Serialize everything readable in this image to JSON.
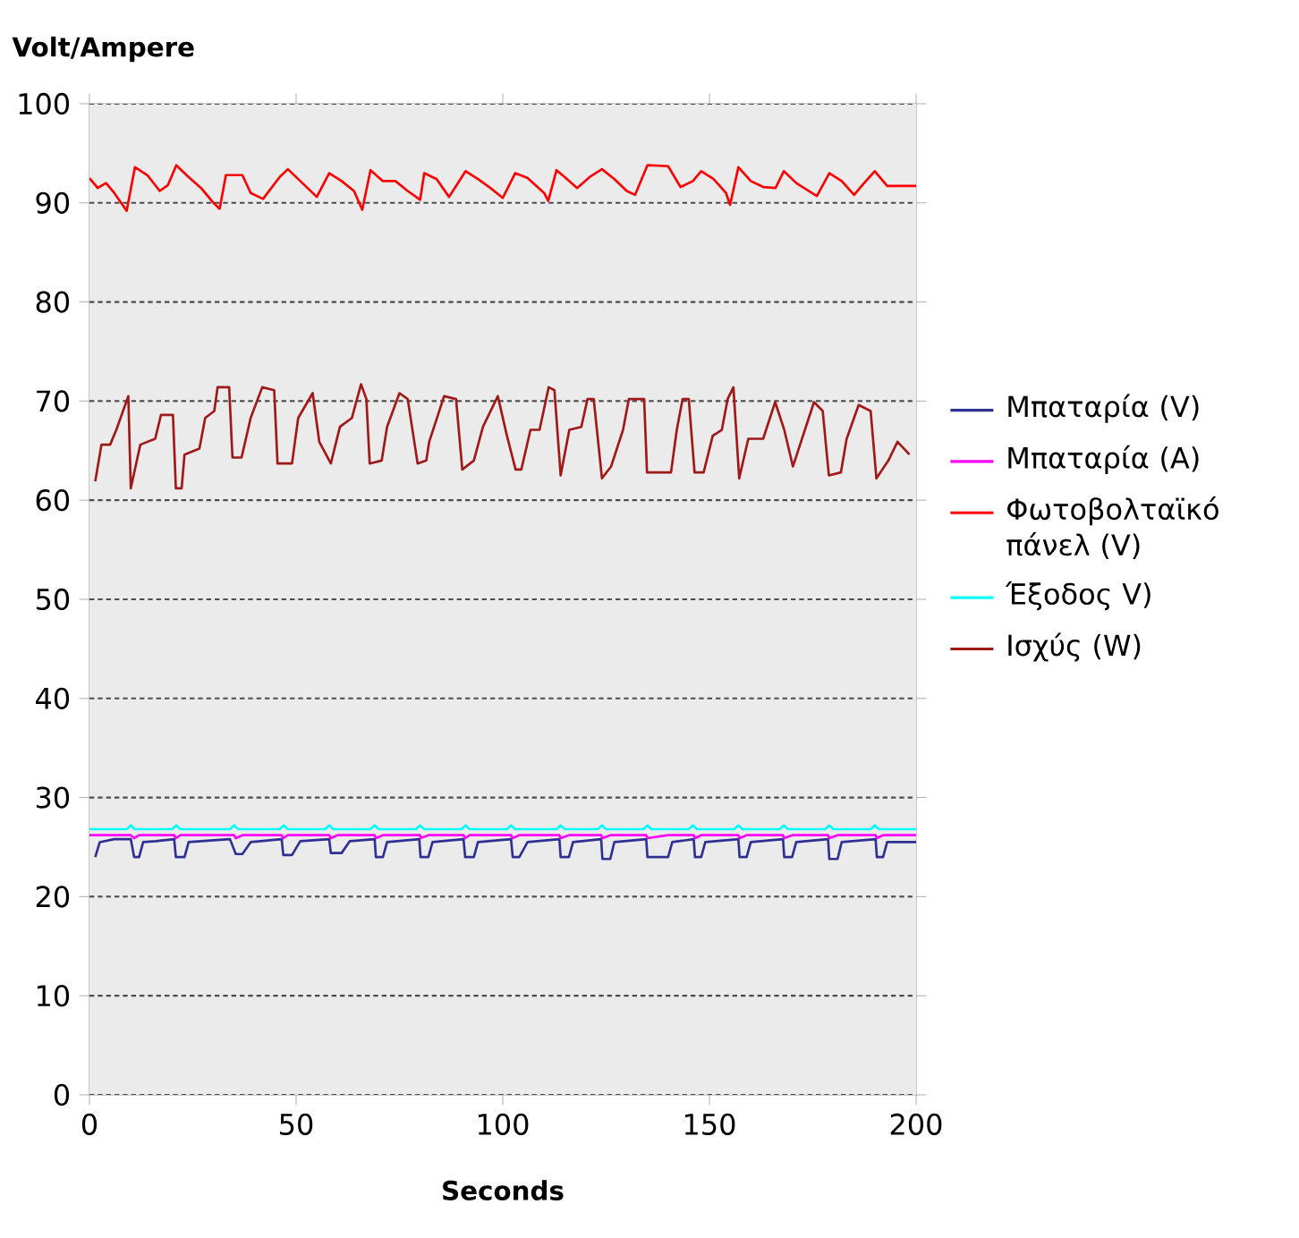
{
  "chart_data": {
    "type": "line",
    "xlabel": "Seconds",
    "ylabel": "Volt/Ampere",
    "xlim": [
      0,
      200
    ],
    "ylim": [
      0,
      100
    ],
    "xticks": [
      0,
      50,
      100,
      150,
      200
    ],
    "yticks": [
      0,
      10,
      20,
      30,
      40,
      50,
      60,
      70,
      80,
      90,
      100
    ],
    "grid": "y",
    "legend": "right",
    "series": [
      {
        "name": "Μπαταρία (V)",
        "color": "#2e3192",
        "x": [
          1.4,
          2.5,
          6,
          10,
          10.8,
          12,
          13,
          16,
          20.5,
          20.9,
          23,
          24,
          27,
          34,
          35.4,
          37,
          39,
          46.5,
          46.9,
          49,
          51,
          58,
          58.4,
          61,
          63,
          69,
          69.3,
          71,
          72,
          79.8,
          80.1,
          82,
          83,
          90.5,
          90.9,
          93,
          94,
          102,
          102.4,
          104,
          106,
          113.7,
          114,
          116,
          117,
          123.8,
          124.1,
          126,
          127,
          134.7,
          135,
          140,
          141,
          146.2,
          146.5,
          148,
          149,
          157,
          157.3,
          159,
          160,
          167.8,
          168.1,
          170,
          171,
          178.7,
          179,
          181,
          182,
          190.2,
          190.5,
          192,
          193,
          200
        ],
        "values": [
          24.0,
          25.5,
          25.8,
          25.8,
          24.0,
          24.0,
          25.5,
          25.6,
          25.8,
          24.0,
          24.0,
          25.5,
          25.6,
          25.8,
          24.3,
          24.3,
          25.5,
          25.8,
          24.2,
          24.2,
          25.6,
          25.8,
          24.4,
          24.4,
          25.6,
          25.8,
          24.0,
          24.0,
          25.5,
          25.8,
          24.0,
          24.0,
          25.5,
          25.8,
          24.0,
          24.0,
          25.5,
          25.8,
          24.0,
          24.0,
          25.5,
          25.8,
          24.0,
          24.0,
          25.5,
          25.8,
          23.8,
          23.8,
          25.5,
          25.8,
          24.0,
          24.0,
          25.5,
          25.8,
          24.0,
          24.0,
          25.5,
          25.8,
          24.0,
          24.0,
          25.5,
          25.8,
          24.0,
          24.0,
          25.5,
          25.8,
          23.8,
          23.8,
          25.5,
          25.8,
          24.0,
          24.0,
          25.5,
          25.5
        ]
      },
      {
        "name": "Μπαταρία (A)",
        "color": "#ff00ff",
        "x": [
          0,
          10,
          10.8,
          12,
          20.5,
          20.9,
          22,
          35,
          35.4,
          37,
          46.5,
          46.9,
          48,
          58,
          58.4,
          60,
          69,
          69.3,
          71,
          80,
          80.1,
          82,
          90.5,
          90.9,
          92,
          102,
          102.4,
          104,
          113.7,
          114,
          116,
          123.8,
          124.1,
          126,
          134.7,
          135,
          140,
          146.2,
          146.5,
          148,
          157,
          157.3,
          159,
          167.8,
          168.1,
          170,
          178.7,
          179,
          181,
          190.2,
          190.5,
          192,
          200
        ],
        "values": [
          26.2,
          26.2,
          25.9,
          26.2,
          26.2,
          25.9,
          26.2,
          26.2,
          25.9,
          26.2,
          26.2,
          25.9,
          26.2,
          26.2,
          25.9,
          26.2,
          26.2,
          25.9,
          26.2,
          26.2,
          25.9,
          26.2,
          26.2,
          25.9,
          26.2,
          26.2,
          25.9,
          26.2,
          26.2,
          25.9,
          26.2,
          26.2,
          25.9,
          26.2,
          26.2,
          25.9,
          26.2,
          26.2,
          25.9,
          26.2,
          26.2,
          25.9,
          26.2,
          26.2,
          25.9,
          26.2,
          26.2,
          25.9,
          26.2,
          26.2,
          25.9,
          26.2,
          26.2
        ]
      },
      {
        "name": "Φωτοβολταϊκό πάνελ (V)",
        "color": "#ff0000",
        "x": [
          0,
          2,
          4,
          6,
          9,
          11,
          14,
          17,
          19,
          21,
          24,
          27,
          30,
          31.5,
          33,
          37,
          39,
          42,
          46,
          48,
          51,
          55,
          58,
          61,
          64,
          66,
          68,
          71,
          74,
          77,
          80,
          81,
          84,
          87,
          91,
          94,
          97,
          100,
          103,
          106,
          110,
          111,
          113,
          115,
          118,
          121,
          124,
          127,
          130,
          132,
          135,
          140,
          143,
          146,
          148,
          151,
          154,
          155,
          157,
          160,
          163,
          166,
          168,
          171,
          174,
          176,
          179,
          182,
          185,
          187,
          190,
          193,
          200
        ],
        "values": [
          92.5,
          91.5,
          92,
          91,
          89.2,
          93.6,
          92.8,
          91.2,
          91.8,
          93.8,
          92.6,
          91.5,
          90,
          89.4,
          92.8,
          92.8,
          91,
          90.4,
          92.6,
          93.4,
          92.2,
          90.6,
          93,
          92.2,
          91.2,
          89.3,
          93.3,
          92.2,
          92.2,
          91.2,
          90.3,
          93,
          92.4,
          90.6,
          93.2,
          92.4,
          91.5,
          90.5,
          93,
          92.5,
          91,
          90.2,
          93.3,
          92.6,
          91.5,
          92.6,
          93.4,
          92.4,
          91.2,
          90.8,
          93.8,
          93.7,
          91.6,
          92.2,
          93.2,
          92.4,
          91,
          89.8,
          93.6,
          92.2,
          91.6,
          91.5,
          93.2,
          92,
          91.2,
          90.7,
          93,
          92.2,
          90.8,
          91.8,
          93.2,
          91.7,
          91.7
        ]
      },
      {
        "name": "Έξοδος V)",
        "color": "#00ffff",
        "x": [
          0,
          9,
          10,
          11,
          20,
          21,
          22,
          34,
          35,
          36,
          46,
          47,
          48,
          57,
          58,
          59,
          68,
          69,
          70,
          79,
          80,
          81,
          90,
          91,
          92,
          101,
          102,
          103,
          113,
          114,
          115,
          123,
          124,
          125,
          134,
          135,
          136,
          145,
          146,
          147,
          156,
          157,
          158,
          167,
          168,
          169,
          178,
          179,
          180,
          189,
          190,
          191,
          200
        ],
        "values": [
          26.8,
          26.8,
          27.2,
          26.8,
          26.8,
          27.2,
          26.8,
          26.8,
          27.2,
          26.8,
          26.8,
          27.2,
          26.8,
          26.8,
          27.2,
          26.8,
          26.8,
          27.2,
          26.8,
          26.8,
          27.2,
          26.8,
          26.8,
          27.2,
          26.8,
          26.8,
          27.2,
          26.8,
          26.8,
          27.2,
          26.8,
          26.8,
          27.2,
          26.8,
          26.8,
          27.2,
          26.8,
          26.8,
          27.2,
          26.8,
          26.8,
          27.2,
          26.8,
          26.8,
          27.2,
          26.8,
          26.8,
          27.2,
          26.8,
          26.8,
          27.2,
          26.8,
          26.8
        ]
      },
      {
        "name": "Ισχύς (W)",
        "color": "#a01818",
        "x": [
          1.4,
          2.9,
          5,
          6.5,
          9.4,
          10,
          12.3,
          15.9,
          17.3,
          20.2,
          20.9,
          22.3,
          23,
          26.6,
          28,
          30.2,
          31,
          33.8,
          34.6,
          36.8,
          39,
          41.8,
          44.7,
          45.5,
          49,
          50.5,
          54,
          55.6,
          58.4,
          60.6,
          63.5,
          65.7,
          67,
          67.8,
          70.7,
          72,
          75,
          77,
          79.4,
          81.5,
          82.2,
          85.8,
          88.7,
          90.2,
          93,
          95.2,
          98.8,
          101,
          103.1,
          104.5,
          106.7,
          108.9,
          111.1,
          112.5,
          114,
          116.1,
          119,
          120.5,
          122,
          124,
          126.2,
          129.1,
          130.5,
          134.2,
          134.9,
          140.7,
          142.1,
          143.5,
          145,
          146.4,
          148.6,
          150.8,
          153,
          154.4,
          155.8,
          157.2,
          159.4,
          163,
          165.9,
          168.1,
          170.2,
          173.1,
          175.3,
          177.4,
          178.9,
          181.8,
          183.2,
          186.1,
          189,
          190.4,
          193.3,
          195.5,
          198.4
        ],
        "values": [
          61.9,
          65.6,
          65.6,
          67.1,
          70.5,
          61.2,
          65.6,
          66.2,
          68.6,
          68.6,
          61.2,
          61.2,
          64.6,
          65.2,
          68.3,
          69,
          71.4,
          71.4,
          64.3,
          64.3,
          68.3,
          71.4,
          71.1,
          63.7,
          63.7,
          68.3,
          70.8,
          65.9,
          63.7,
          67.4,
          68.3,
          71.7,
          70.2,
          63.7,
          64,
          67.4,
          70.8,
          70.2,
          63.7,
          64,
          65.9,
          70.5,
          70.2,
          63.1,
          64,
          67.4,
          70.5,
          66.5,
          63.1,
          63.1,
          67.1,
          67.1,
          71.4,
          71.1,
          62.5,
          67.1,
          67.4,
          70.2,
          70.2,
          62.2,
          63.4,
          67.1,
          70.2,
          70.2,
          62.8,
          62.8,
          67.1,
          70.2,
          70.2,
          62.8,
          62.8,
          66.5,
          67.1,
          70.2,
          71.4,
          62.2,
          66.2,
          66.2,
          69.9,
          67.1,
          63.4,
          67.1,
          69.9,
          69,
          62.5,
          62.8,
          66.2,
          69.6,
          69,
          62.2,
          64,
          65.9,
          64.6
        ]
      }
    ]
  }
}
